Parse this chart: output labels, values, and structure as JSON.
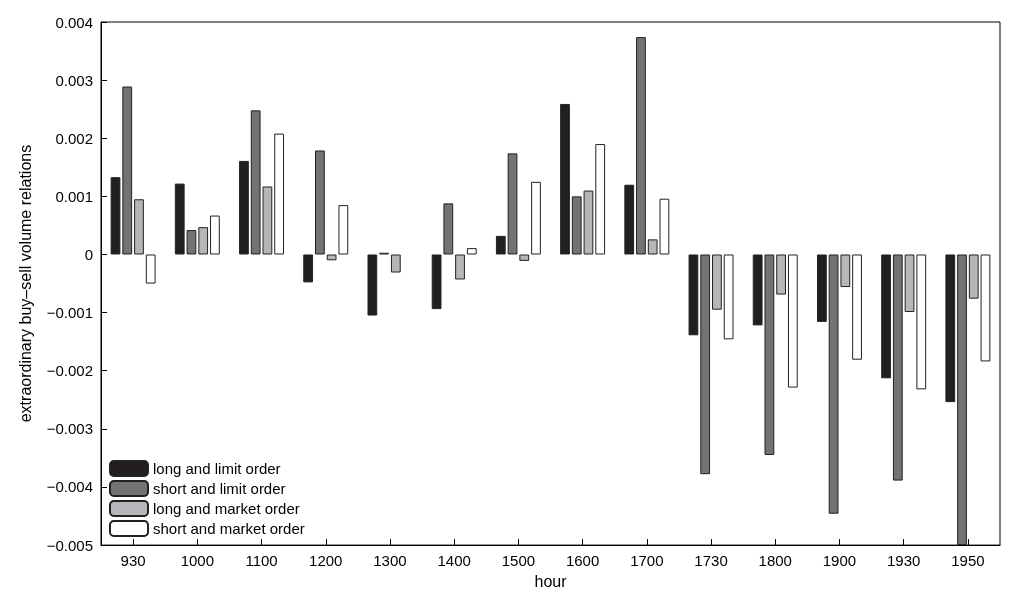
{
  "chart_data": {
    "type": "bar",
    "xlabel": "hour",
    "ylabel": "extraordinary buy–sell volume relations",
    "categories": [
      "930",
      "1000",
      "1100",
      "1200",
      "1300",
      "1400",
      "1500",
      "1600",
      "1700",
      "1730",
      "1800",
      "1900",
      "1930",
      "1950"
    ],
    "series": [
      {
        "name": "long and limit order",
        "color": "#231f20",
        "values": [
          0.00133,
          0.00122,
          0.00161,
          -0.00048,
          -0.00105,
          -0.00094,
          0.00032,
          0.00259,
          0.0012,
          -0.00139,
          -0.00122,
          -0.00116,
          -0.00213,
          -0.00254
        ]
      },
      {
        "name": "short and limit order",
        "color": "#737373",
        "values": [
          0.00289,
          0.00042,
          0.00248,
          0.00179,
          3e-05,
          0.00088,
          0.00174,
          0.001,
          0.00374,
          -0.00378,
          -0.00345,
          -0.00446,
          -0.00389,
          -0.005
        ]
      },
      {
        "name": "long and market order",
        "color": "#b5b6b9",
        "values": [
          0.00095,
          0.00047,
          0.00117,
          -0.0001,
          -0.00031,
          -0.00043,
          -0.00011,
          0.0011,
          0.00026,
          -0.00095,
          -0.00069,
          -0.00056,
          -0.00099,
          -0.00076
        ]
      },
      {
        "name": "short and market order",
        "color": "#ffffff",
        "values": [
          -0.0005,
          0.00067,
          0.00208,
          0.00085,
          null,
          0.00011,
          0.00125,
          0.0019,
          0.00096,
          -0.00146,
          -0.00229,
          -0.00181,
          -0.00232,
          -0.00184
        ]
      }
    ],
    "ylim": [
      -0.005,
      0.004
    ],
    "yticks": [
      {
        "value": -0.005,
        "label": "−0.005"
      },
      {
        "value": -0.004,
        "label": "−0.004"
      },
      {
        "value": -0.003,
        "label": "−0.003"
      },
      {
        "value": -0.002,
        "label": "−0.002"
      },
      {
        "value": -0.001,
        "label": "−0.001"
      },
      0,
      0.001,
      0.002,
      0.003,
      0.004
    ],
    "grid": false,
    "legend": "bottom left"
  }
}
